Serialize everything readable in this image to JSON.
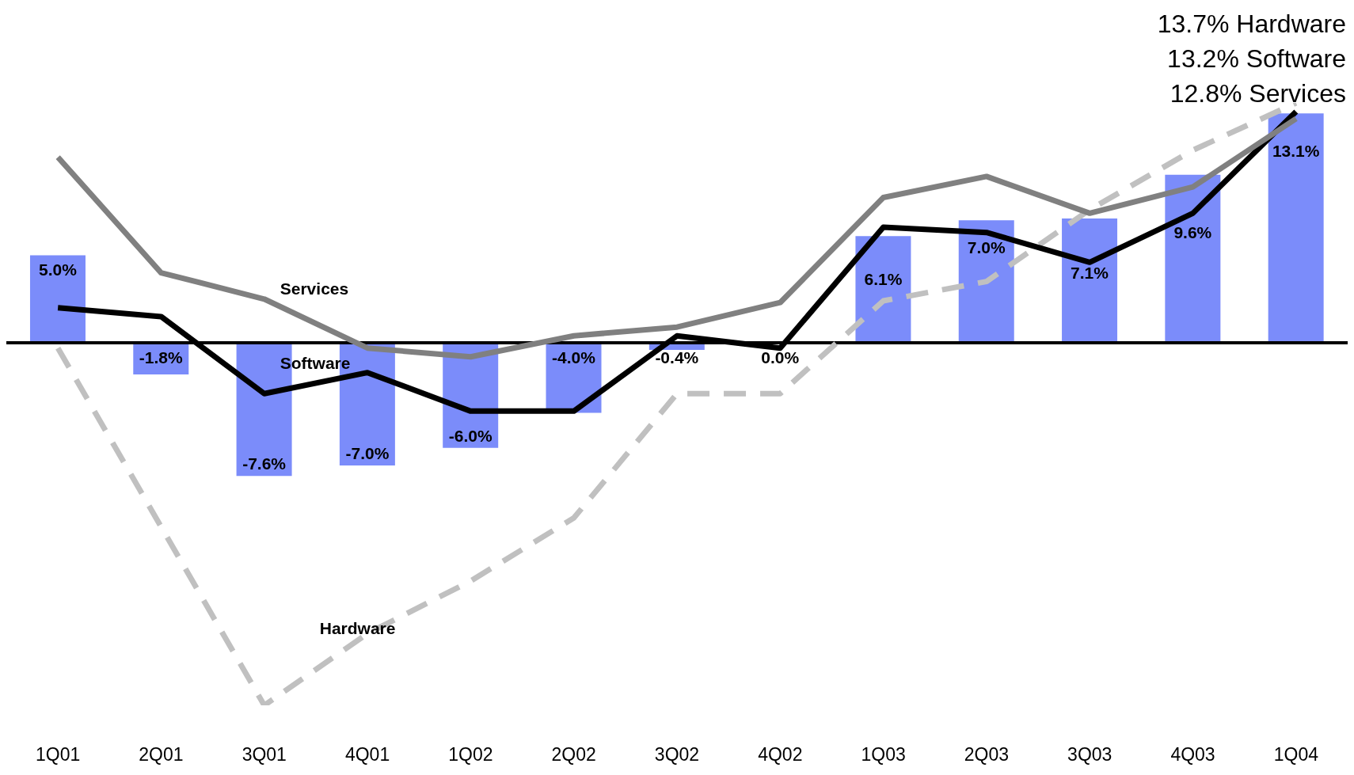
{
  "chart_data": {
    "type": "bar",
    "categories": [
      "1Q01",
      "2Q01",
      "3Q01",
      "4Q01",
      "1Q02",
      "2Q02",
      "3Q02",
      "4Q02",
      "1Q03",
      "2Q03",
      "3Q03",
      "4Q03",
      "1Q04"
    ],
    "values": [
      5.0,
      -1.8,
      -7.6,
      -7.0,
      -6.0,
      -4.0,
      -0.4,
      0.0,
      6.1,
      7.0,
      7.1,
      9.6,
      13.1
    ],
    "value_labels": [
      "5.0%",
      "-1.8%",
      "-7.6%",
      "-7.0%",
      "-6.0%",
      "-4.0%",
      "-0.4%",
      "0.0%",
      "6.1%",
      "7.0%",
      "7.1%",
      "9.6%",
      "13.1%"
    ],
    "color": "#7b8cfa",
    "series": [
      {
        "name": "Hardware",
        "type": "line",
        "color": "#c0c0c0",
        "line_style": "dashed",
        "values": [
          -0.3,
          -10.5,
          -20.7,
          -16.6,
          -13.6,
          -10.0,
          -2.9,
          -2.9,
          2.4,
          3.5,
          7.6,
          11.0,
          13.7
        ]
      },
      {
        "name": "Software",
        "type": "line",
        "color": "#000000",
        "line_style": "solid",
        "values": [
          2.0,
          1.5,
          -2.9,
          -1.7,
          -3.9,
          -3.9,
          0.4,
          -0.3,
          6.6,
          6.3,
          4.6,
          7.4,
          13.2
        ]
      },
      {
        "name": "Services",
        "type": "line",
        "color": "#808080",
        "line_style": "solid",
        "values": [
          10.6,
          4.0,
          2.5,
          -0.3,
          -0.8,
          0.4,
          0.9,
          2.3,
          8.3,
          9.5,
          7.4,
          8.9,
          12.8
        ]
      }
    ],
    "tick_labels": "x",
    "marker": "none",
    "ref_lines": [
      {
        "axis": "y",
        "value": 0,
        "color": "#000000"
      }
    ],
    "annotations": [
      "13.7% Hardware",
      "13.2% Software",
      "12.8% Services"
    ]
  }
}
